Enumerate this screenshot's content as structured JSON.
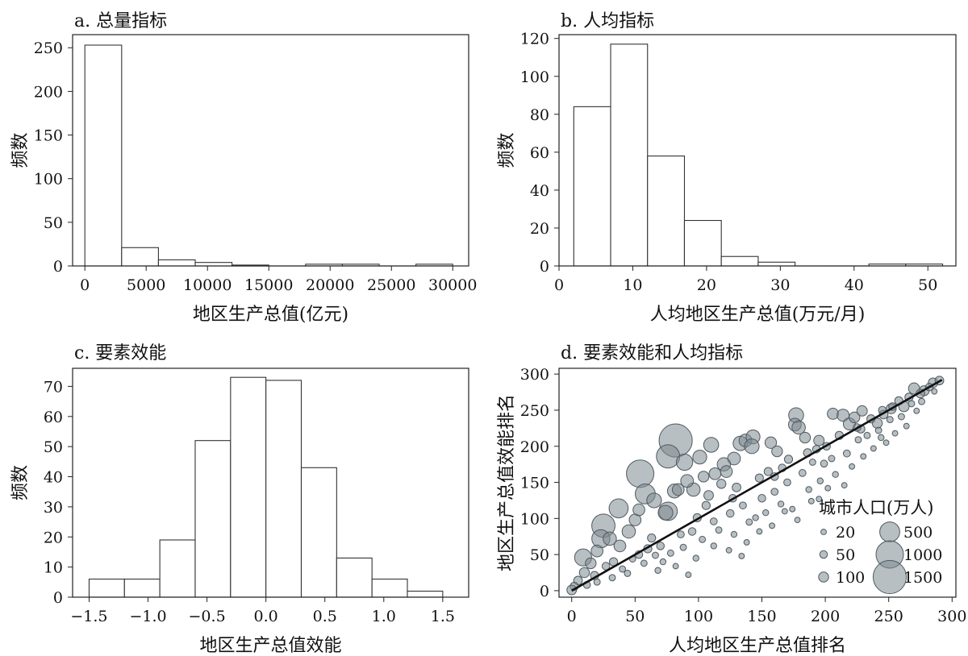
{
  "figure": {
    "panels": {
      "a": {
        "title": "a. 总量指标"
      },
      "b": {
        "title": "b. 人均指标"
      },
      "c": {
        "title": "c. 要素效能"
      },
      "d": {
        "title": "d. 要素效能和人均指标"
      }
    }
  },
  "chart_data": [
    {
      "id": "a",
      "type": "bar",
      "title": "a. 总量指标",
      "xlabel": "地区生产总值(亿元)",
      "ylabel": "频数",
      "bin_edges": [
        0,
        3000,
        6000,
        9000,
        12000,
        15000,
        18000,
        21000,
        24000,
        27000,
        30000
      ],
      "values": [
        253,
        21,
        7,
        4,
        1,
        0,
        2,
        2,
        0,
        2
      ],
      "xlim": [
        -1000,
        31300
      ],
      "ylim": [
        0,
        265
      ],
      "xticks": [
        0,
        5000,
        10000,
        15000,
        20000,
        25000,
        30000
      ],
      "yticks": [
        0,
        50,
        100,
        150,
        200,
        250
      ],
      "colors": {
        "bar_fill": "#ffffff",
        "bar_stroke": "#333333"
      }
    },
    {
      "id": "b",
      "type": "bar",
      "title": "b. 人均指标",
      "xlabel": "人均地区生产总值(万元/月)",
      "ylabel": "频数",
      "bin_edges": [
        2,
        7,
        12,
        17,
        22,
        27,
        32,
        37,
        42,
        47,
        52
      ],
      "values": [
        84,
        117,
        58,
        24,
        5,
        2,
        0,
        0,
        1,
        1
      ],
      "xlim": [
        0,
        53.8
      ],
      "ylim": [
        0,
        122
      ],
      "xticks": [
        0,
        10,
        20,
        30,
        40,
        50
      ],
      "yticks": [
        0,
        20,
        40,
        60,
        80,
        100,
        120
      ],
      "colors": {
        "bar_fill": "#ffffff",
        "bar_stroke": "#333333"
      }
    },
    {
      "id": "c",
      "type": "bar",
      "title": "c. 要素效能",
      "xlabel": "地区生产总值效能",
      "ylabel": "频数",
      "bin_edges": [
        -1.5,
        -1.2,
        -0.9,
        -0.6,
        -0.3,
        0.0,
        0.3,
        0.6,
        0.9,
        1.2,
        1.5
      ],
      "values": [
        6,
        6,
        19,
        52,
        73,
        72,
        43,
        13,
        6,
        2
      ],
      "xlim": [
        -1.64,
        1.72
      ],
      "ylim": [
        0,
        76
      ],
      "xticks": [
        -1.5,
        -1.0,
        -0.5,
        0.0,
        0.5,
        1.0,
        1.5
      ],
      "xtick_labels": [
        "−1.5",
        "−1.0",
        "−0.5",
        "0.0",
        "0.5",
        "1.0",
        "1.5"
      ],
      "yticks": [
        0,
        10,
        20,
        30,
        40,
        50,
        60,
        70
      ],
      "colors": {
        "bar_fill": "#ffffff",
        "bar_stroke": "#333333"
      }
    },
    {
      "id": "d",
      "type": "scatter",
      "title": "d. 要素效能和人均指标",
      "xlabel": "人均地区生产总值排名",
      "ylabel": "地区生产总值效能排名",
      "xlim": [
        -10,
        303
      ],
      "ylim": [
        -9,
        308
      ],
      "xticks": [
        0,
        50,
        100,
        150,
        200,
        250,
        300
      ],
      "yticks": [
        0,
        50,
        100,
        150,
        200,
        250,
        300
      ],
      "points": [
        {
          "x": 82,
          "y": 208,
          "pop": 1500
        },
        {
          "x": 54,
          "y": 162,
          "pop": 1000
        },
        {
          "x": 76,
          "y": 186,
          "pop": 700
        },
        {
          "x": 25,
          "y": 90,
          "pop": 700
        },
        {
          "x": 23,
          "y": 72,
          "pop": 400
        },
        {
          "x": 58,
          "y": 134,
          "pop": 500
        },
        {
          "x": 37,
          "y": 114,
          "pop": 450
        },
        {
          "x": 9,
          "y": 46,
          "pop": 350
        },
        {
          "x": 89,
          "y": 178,
          "pop": 320
        },
        {
          "x": 76,
          "y": 110,
          "pop": 420
        },
        {
          "x": 65,
          "y": 125,
          "pop": 250
        },
        {
          "x": 74,
          "y": 108,
          "pop": 250
        },
        {
          "x": 96,
          "y": 140,
          "pop": 200
        },
        {
          "x": 101,
          "y": 185,
          "pop": 220
        },
        {
          "x": 110,
          "y": 202,
          "pop": 260
        },
        {
          "x": 133,
          "y": 204,
          "pop": 240
        },
        {
          "x": 137,
          "y": 208,
          "pop": 180
        },
        {
          "x": 143,
          "y": 213,
          "pop": 220
        },
        {
          "x": 142,
          "y": 200,
          "pop": 250
        },
        {
          "x": 177,
          "y": 243,
          "pop": 260
        },
        {
          "x": 176,
          "y": 230,
          "pop": 180
        },
        {
          "x": 179,
          "y": 226,
          "pop": 200
        },
        {
          "x": 128,
          "y": 183,
          "pop": 180
        },
        {
          "x": 120,
          "y": 175,
          "pop": 200
        },
        {
          "x": 113,
          "y": 162,
          "pop": 150
        },
        {
          "x": 81,
          "y": 138,
          "pop": 220
        },
        {
          "x": 45,
          "y": 82,
          "pop": 200
        },
        {
          "x": 30,
          "y": 72,
          "pop": 200
        },
        {
          "x": 20,
          "y": 55,
          "pop": 150
        },
        {
          "x": 15,
          "y": 38,
          "pop": 120
        },
        {
          "x": 10,
          "y": 25,
          "pop": 100
        },
        {
          "x": 5,
          "y": 14,
          "pop": 70
        },
        {
          "x": 2,
          "y": 6,
          "pop": 60
        },
        {
          "x": 0,
          "y": 1,
          "pop": 90
        },
        {
          "x": 38,
          "y": 62,
          "pop": 150
        },
        {
          "x": 50,
          "y": 98,
          "pop": 150
        },
        {
          "x": 53,
          "y": 112,
          "pop": 150
        },
        {
          "x": 84,
          "y": 140,
          "pop": 150
        },
        {
          "x": 91,
          "y": 152,
          "pop": 180
        },
        {
          "x": 104,
          "y": 158,
          "pop": 120
        },
        {
          "x": 122,
          "y": 165,
          "pop": 150
        },
        {
          "x": 157,
          "y": 205,
          "pop": 140
        },
        {
          "x": 162,
          "y": 193,
          "pop": 120
        },
        {
          "x": 184,
          "y": 212,
          "pop": 120
        },
        {
          "x": 195,
          "y": 208,
          "pop": 110
        },
        {
          "x": 206,
          "y": 245,
          "pop": 130
        },
        {
          "x": 214,
          "y": 243,
          "pop": 160
        },
        {
          "x": 219,
          "y": 231,
          "pop": 160
        },
        {
          "x": 223,
          "y": 240,
          "pop": 120
        },
        {
          "x": 229,
          "y": 249,
          "pop": 110
        },
        {
          "x": 241,
          "y": 232,
          "pop": 100
        },
        {
          "x": 252,
          "y": 252,
          "pop": 100
        },
        {
          "x": 262,
          "y": 255,
          "pop": 110
        },
        {
          "x": 270,
          "y": 280,
          "pop": 130
        },
        {
          "x": 278,
          "y": 277,
          "pop": 100
        },
        {
          "x": 285,
          "y": 288,
          "pop": 90
        },
        {
          "x": 290,
          "y": 291,
          "pop": 70
        },
        {
          "x": 108,
          "y": 132,
          "pop": 90
        },
        {
          "x": 118,
          "y": 148,
          "pop": 80
        },
        {
          "x": 130,
          "y": 143,
          "pop": 70
        },
        {
          "x": 148,
          "y": 156,
          "pop": 60
        },
        {
          "x": 155,
          "y": 165,
          "pop": 60
        },
        {
          "x": 166,
          "y": 170,
          "pop": 50
        },
        {
          "x": 171,
          "y": 182,
          "pop": 60
        },
        {
          "x": 186,
          "y": 191,
          "pop": 60
        },
        {
          "x": 201,
          "y": 200,
          "pop": 50
        },
        {
          "x": 211,
          "y": 215,
          "pop": 60
        },
        {
          "x": 228,
          "y": 224,
          "pop": 60
        },
        {
          "x": 236,
          "y": 238,
          "pop": 60
        },
        {
          "x": 246,
          "y": 244,
          "pop": 70
        },
        {
          "x": 258,
          "y": 263,
          "pop": 60
        },
        {
          "x": 266,
          "y": 268,
          "pop": 60
        },
        {
          "x": 275,
          "y": 273,
          "pop": 70
        },
        {
          "x": 282,
          "y": 282,
          "pop": 50
        },
        {
          "x": 60,
          "y": 58,
          "pop": 60
        },
        {
          "x": 70,
          "y": 62,
          "pop": 50
        },
        {
          "x": 86,
          "y": 78,
          "pop": 40
        },
        {
          "x": 95,
          "y": 82,
          "pop": 50
        },
        {
          "x": 99,
          "y": 101,
          "pop": 60
        },
        {
          "x": 112,
          "y": 96,
          "pop": 40
        },
        {
          "x": 125,
          "y": 107,
          "pop": 50
        },
        {
          "x": 135,
          "y": 118,
          "pop": 40
        },
        {
          "x": 140,
          "y": 95,
          "pop": 30
        },
        {
          "x": 150,
          "y": 128,
          "pop": 50
        },
        {
          "x": 160,
          "y": 137,
          "pop": 40
        },
        {
          "x": 170,
          "y": 150,
          "pop": 40
        },
        {
          "x": 182,
          "y": 163,
          "pop": 40
        },
        {
          "x": 190,
          "y": 178,
          "pop": 30
        },
        {
          "x": 199,
          "y": 176,
          "pop": 40
        },
        {
          "x": 205,
          "y": 183,
          "pop": 30
        },
        {
          "x": 217,
          "y": 190,
          "pop": 40
        },
        {
          "x": 226,
          "y": 209,
          "pop": 30
        },
        {
          "x": 233,
          "y": 215,
          "pop": 30
        },
        {
          "x": 242,
          "y": 222,
          "pop": 30
        },
        {
          "x": 251,
          "y": 237,
          "pop": 30
        },
        {
          "x": 260,
          "y": 241,
          "pop": 30
        },
        {
          "x": 268,
          "y": 259,
          "pop": 30
        },
        {
          "x": 276,
          "y": 262,
          "pop": 30
        },
        {
          "x": 40,
          "y": 30,
          "pop": 30
        },
        {
          "x": 48,
          "y": 44,
          "pop": 30
        },
        {
          "x": 57,
          "y": 38,
          "pop": 30
        },
        {
          "x": 66,
          "y": 49,
          "pop": 30
        },
        {
          "x": 78,
          "y": 52,
          "pop": 30
        },
        {
          "x": 88,
          "y": 60,
          "pop": 30
        },
        {
          "x": 103,
          "y": 71,
          "pop": 30
        },
        {
          "x": 116,
          "y": 84,
          "pop": 30
        },
        {
          "x": 128,
          "y": 78,
          "pop": 25
        },
        {
          "x": 145,
          "y": 101,
          "pop": 25
        },
        {
          "x": 153,
          "y": 108,
          "pop": 25
        },
        {
          "x": 165,
          "y": 120,
          "pop": 25
        },
        {
          "x": 174,
          "y": 113,
          "pop": 20
        },
        {
          "x": 187,
          "y": 140,
          "pop": 25
        },
        {
          "x": 196,
          "y": 152,
          "pop": 25
        },
        {
          "x": 208,
          "y": 161,
          "pop": 25
        },
        {
          "x": 221,
          "y": 172,
          "pop": 20
        },
        {
          "x": 238,
          "y": 197,
          "pop": 20
        },
        {
          "x": 248,
          "y": 205,
          "pop": 20
        },
        {
          "x": 255,
          "y": 218,
          "pop": 20
        },
        {
          "x": 264,
          "y": 228,
          "pop": 20
        },
        {
          "x": 272,
          "y": 249,
          "pop": 20
        },
        {
          "x": 286,
          "y": 276,
          "pop": 20
        },
        {
          "x": 202,
          "y": 142,
          "pop": 20
        },
        {
          "x": 189,
          "y": 124,
          "pop": 20
        },
        {
          "x": 178,
          "y": 98,
          "pop": 20
        },
        {
          "x": 158,
          "y": 90,
          "pop": 20
        },
        {
          "x": 138,
          "y": 67,
          "pop": 20
        },
        {
          "x": 124,
          "y": 56,
          "pop": 20
        },
        {
          "x": 92,
          "y": 22,
          "pop": 20
        },
        {
          "x": 82,
          "y": 34,
          "pop": 20
        },
        {
          "x": 68,
          "y": 28,
          "pop": 25
        },
        {
          "x": 32,
          "y": 18,
          "pop": 30
        },
        {
          "x": 20,
          "y": 12,
          "pop": 30
        },
        {
          "x": 12,
          "y": 8,
          "pop": 40
        },
        {
          "x": 215,
          "y": 146,
          "pop": 20
        },
        {
          "x": 230,
          "y": 186,
          "pop": 20
        },
        {
          "x": 244,
          "y": 212,
          "pop": 25
        },
        {
          "x": 195,
          "y": 127,
          "pop": 20
        },
        {
          "x": 168,
          "y": 110,
          "pop": 20
        },
        {
          "x": 148,
          "y": 82,
          "pop": 20
        },
        {
          "x": 134,
          "y": 48,
          "pop": 20
        },
        {
          "x": 112,
          "y": 62,
          "pop": 25
        },
        {
          "x": 98,
          "y": 45,
          "pop": 25
        },
        {
          "x": 72,
          "y": 40,
          "pop": 25
        },
        {
          "x": 44,
          "y": 24,
          "pop": 30
        },
        {
          "x": 53,
          "y": 50,
          "pop": 50
        },
        {
          "x": 63,
          "y": 73,
          "pop": 60
        },
        {
          "x": 33,
          "y": 40,
          "pop": 60
        },
        {
          "x": 27,
          "y": 34,
          "pop": 50
        },
        {
          "x": 18,
          "y": 21,
          "pop": 60
        },
        {
          "x": 106,
          "y": 118,
          "pop": 60
        },
        {
          "x": 127,
          "y": 128,
          "pop": 50
        },
        {
          "x": 160,
          "y": 158,
          "pop": 50
        },
        {
          "x": 193,
          "y": 196,
          "pop": 50
        },
        {
          "x": 225,
          "y": 226,
          "pop": 50
        },
        {
          "x": 245,
          "y": 250,
          "pop": 50
        },
        {
          "x": 253,
          "y": 255,
          "pop": 50
        }
      ],
      "fit_line": {
        "x": [
          0,
          292
        ],
        "y": [
          0,
          292
        ]
      },
      "legend": {
        "title": "城市人口(万人)",
        "position": "bottom-right",
        "entries": [
          {
            "label": "20",
            "pop": 20
          },
          {
            "label": "50",
            "pop": 50
          },
          {
            "label": "100",
            "pop": 100
          },
          {
            "label": "500",
            "pop": 500
          },
          {
            "label": "1000",
            "pop": 1000
          },
          {
            "label": "1500",
            "pop": 1500
          }
        ]
      },
      "colors": {
        "point_fill": "#7e8a90",
        "point_stroke": "#4e5960",
        "line": "#111111"
      }
    }
  ]
}
